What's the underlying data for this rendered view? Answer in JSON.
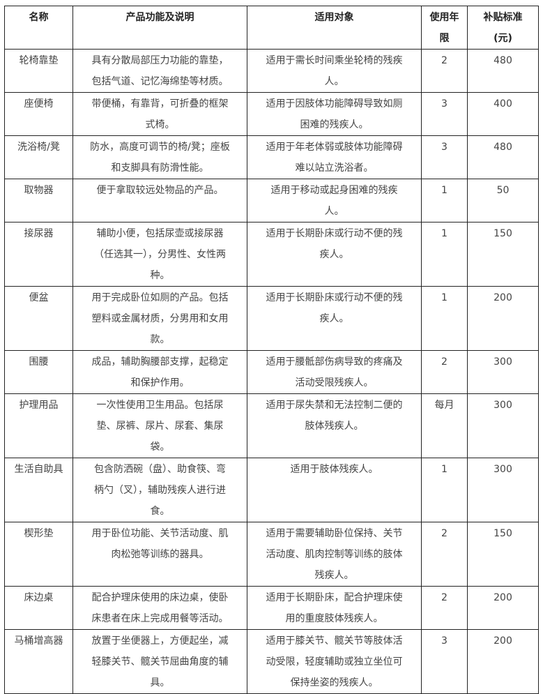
{
  "table": {
    "headers": [
      "名称",
      "产品功能及说明",
      "适用对象",
      "使用年\n限",
      "补贴标准\n(元)"
    ],
    "rows": [
      {
        "name": "轮椅靠垫",
        "desc": "具有分散局部压力功能的靠垫，\n包括气道、记忆海绵垫等材质。",
        "target": "适用于需长时间乘坐轮椅的残疾\n人。",
        "years": "2",
        "subsidy": "480"
      },
      {
        "name": "座便椅",
        "desc": "带便桶，有靠背，可折叠的框架\n式椅。",
        "target": "适用于因肢体功能障碍导致如厕\n困难的残疾人。",
        "years": "3",
        "subsidy": "400"
      },
      {
        "name": "洗浴椅/凳",
        "desc": "防水，高度可调节的椅/凳；座板\n和支脚具有防滑性能。",
        "target": "适用于年老体弱或肢体功能障碍\n难以站立洗浴者。",
        "years": "3",
        "subsidy": "480"
      },
      {
        "name": "取物器",
        "desc": "便于拿取较远处物品的产品。",
        "target": "适用于移动或起身困难的残疾\n人。",
        "years": "1",
        "subsidy": "50"
      },
      {
        "name": "接尿器",
        "desc": "辅助小便，包括尿壶或接尿器\n（任选其一），分男性、女性两\n种。",
        "target": "适用于长期卧床或行动不便的残\n疾人。",
        "years": "1",
        "subsidy": "150"
      },
      {
        "name": "便盆",
        "desc": "用于完成卧位如厕的产品。包括\n塑料或金属材质，分男用和女用\n款。",
        "target": "适用于长期卧床或行动不便的残\n疾人。",
        "years": "1",
        "subsidy": "200"
      },
      {
        "name": "围腰",
        "desc": "成品，辅助胸腰部支撑，起稳定\n和保护作用。",
        "target": "适用于腰骶部伤病导致的疼痛及\n活动受限残疾人。",
        "years": "2",
        "subsidy": "300"
      },
      {
        "name": "护理用品",
        "desc": "一次性使用卫生用品。包括尿\n垫、尿裤、尿片、尿套、集尿\n袋。",
        "target": "适用于尿失禁和无法控制二便的\n肢体残疾人。",
        "years": "每月",
        "subsidy": "300"
      },
      {
        "name": "生活自助具",
        "desc": "包含防洒碗（盘）、助食筷、弯\n柄勺（叉），辅助残疾人进行进\n食。",
        "target": "适用于肢体残疾人。",
        "years": "1",
        "subsidy": "300"
      },
      {
        "name": "楔形垫",
        "desc": "用于卧位功能、关节活动度、肌\n肉松弛等训练的器具。",
        "target": "适用于需要辅助卧位保持、关节\n活动度、肌肉控制等训练的肢体\n残疾人。",
        "years": "2",
        "subsidy": "150"
      },
      {
        "name": "床边桌",
        "desc": "配合护理床使用的床边桌，使卧\n床患者在床上完成用餐等活动。",
        "target": "适用于长期卧床，配合护理床使\n用的重度肢体残疾人。",
        "years": "2",
        "subsidy": "200"
      },
      {
        "name": "马桶增高器",
        "desc": "放置于坐便器上，方便起坐，减\n轻膝关节、髋关节屈曲角度的辅\n具。",
        "target": "适用于膝关节、髋关节等肢体活\n动受限，轻度辅助或独立坐位可\n保持坐姿的残疾人。",
        "years": "3",
        "subsidy": "200"
      }
    ]
  }
}
